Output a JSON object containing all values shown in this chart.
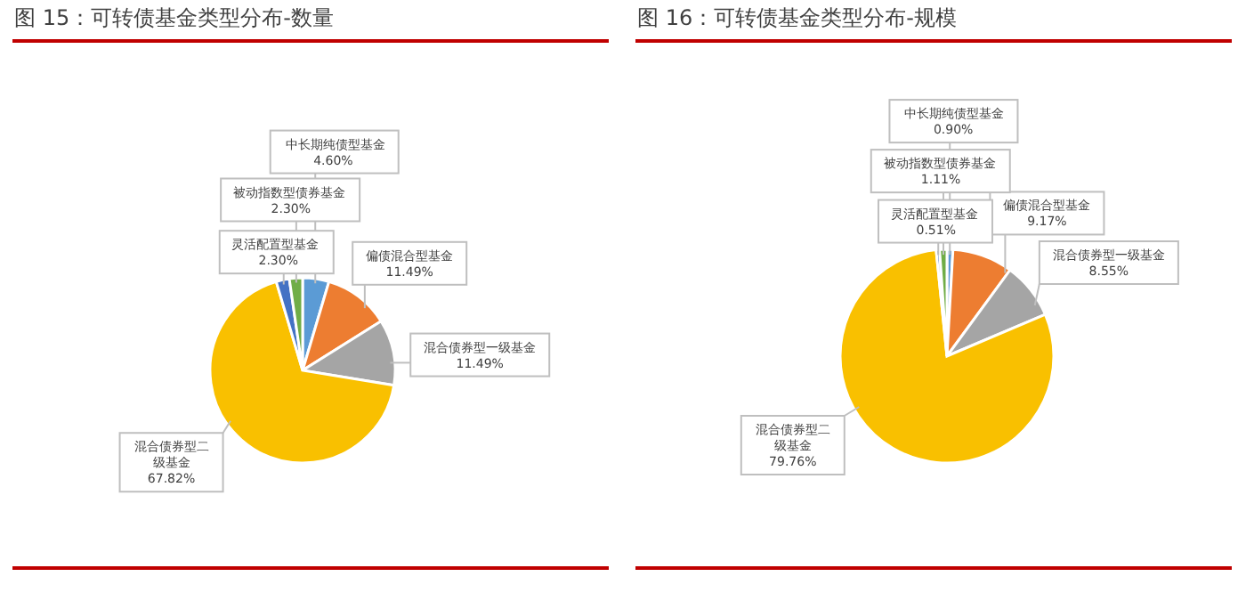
{
  "chart_data": [
    {
      "type": "pie",
      "title": "图 15：可转债基金类型分布-数量",
      "categories": [
        "中长期纯债型基金",
        "偏债混合型基金",
        "混合债券型一级基金",
        "混合债券型二级基金",
        "灵活配置型基金",
        "被动指数型债券基金"
      ],
      "values": [
        4.6,
        11.49,
        11.49,
        67.82,
        2.3,
        2.3
      ],
      "value_labels": [
        "4.60%",
        "11.49%",
        "11.49%",
        "67.82%",
        "2.30%",
        "2.30%"
      ],
      "colors": [
        "#5b9bd5",
        "#ed7d31",
        "#a5a5a5",
        "#f9c000",
        "#4472c4",
        "#70ad47"
      ],
      "legend": false
    },
    {
      "type": "pie",
      "title": "图 16：可转债基金类型分布-规模",
      "categories": [
        "中长期纯债型基金",
        "偏债混合型基金",
        "混合债券型一级基金",
        "混合债券型二级基金",
        "灵活配置型基金",
        "被动指数型债券基金"
      ],
      "values": [
        0.9,
        9.17,
        8.55,
        79.76,
        0.51,
        1.11
      ],
      "value_labels": [
        "0.90%",
        "9.17%",
        "8.55%",
        "79.76%",
        "0.51%",
        "1.11%"
      ],
      "colors": [
        "#5b9bd5",
        "#ed7d31",
        "#a5a5a5",
        "#f9c000",
        "#4472c4",
        "#70ad47"
      ],
      "legend": false
    }
  ]
}
